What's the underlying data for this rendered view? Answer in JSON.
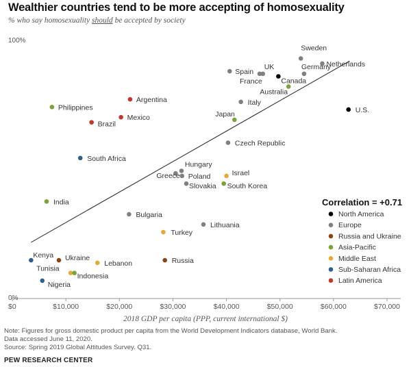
{
  "header": {
    "title": "Wealthier countries tend to be more accepting of homosexuality",
    "subtitle_pre": "% who say homosexuality ",
    "subtitle_em": "should",
    "subtitle_post": " be accepted by society"
  },
  "footer": {
    "note1": "Note: Figures for gross domestic product per capita from the World Development Indicators database, World Bank.",
    "note2": "Data accessed June 11, 2020.",
    "source": "Source: Spring 2019 Global Attitudes Survey. Q31.",
    "org": "PEW RESEARCH CENTER"
  },
  "chart_data": {
    "type": "scatter",
    "title": "Wealthier countries tend to be more accepting of homosexuality",
    "xlabel": "2018 GDP per capita (PPP, current international $)",
    "ylabel": "",
    "xlim": [
      0,
      70000
    ],
    "ylim": [
      0,
      100
    ],
    "x_ticks": [
      0,
      10000,
      20000,
      30000,
      40000,
      50000,
      60000,
      70000
    ],
    "x_tick_labels": [
      "$0",
      "$10,000",
      "$20,000",
      "$30,000",
      "$40,000",
      "$50,000",
      "$60,000",
      "$70,000"
    ],
    "y_ticks": [
      0,
      100
    ],
    "y_tick_labels": [
      "0%",
      "100%"
    ],
    "correlation_label": "Correlation = +0.71",
    "trendline": {
      "x": [
        3500,
        63000
      ],
      "y": [
        22,
        93
      ]
    },
    "legend_position": "right",
    "legend": [
      {
        "name": "North America",
        "color": "#000000"
      },
      {
        "name": "Europe",
        "color": "#808080"
      },
      {
        "name": "Russia and Ukraine",
        "color": "#8B4513"
      },
      {
        "name": "Asia-Pacific",
        "color": "#7BA33B"
      },
      {
        "name": "Middle East",
        "color": "#E5A93B"
      },
      {
        "name": "Sub-Saharan Africa",
        "color": "#2E5F8A"
      },
      {
        "name": "Latin America",
        "color": "#C0392B"
      }
    ],
    "points": [
      {
        "label": "Sweden",
        "x": 53900,
        "y": 94,
        "group": "Europe"
      },
      {
        "label": "Netherlands",
        "x": 57900,
        "y": 92,
        "group": "Europe"
      },
      {
        "label": "Spain",
        "x": 40600,
        "y": 89,
        "group": "Europe"
      },
      {
        "label": "UK",
        "x": 46800,
        "y": 88,
        "group": "Europe"
      },
      {
        "label": "France",
        "x": 46200,
        "y": 88,
        "group": "Europe"
      },
      {
        "label": "Germany",
        "x": 54500,
        "y": 88,
        "group": "Europe"
      },
      {
        "label": "Canada",
        "x": 49700,
        "y": 87,
        "group": "North America"
      },
      {
        "label": "Australia",
        "x": 51600,
        "y": 83,
        "group": "Asia-Pacific"
      },
      {
        "label": "Italy",
        "x": 42700,
        "y": 77,
        "group": "Europe"
      },
      {
        "label": "U.S.",
        "x": 62800,
        "y": 74,
        "group": "North America"
      },
      {
        "label": "Japan",
        "x": 41500,
        "y": 70,
        "group": "Asia-Pacific"
      },
      {
        "label": "Argentina",
        "x": 22000,
        "y": 78,
        "group": "Latin America"
      },
      {
        "label": "Philippines",
        "x": 7400,
        "y": 75,
        "group": "Asia-Pacific"
      },
      {
        "label": "Mexico",
        "x": 20300,
        "y": 71,
        "group": "Latin America"
      },
      {
        "label": "Brazil",
        "x": 14800,
        "y": 69,
        "group": "Latin America"
      },
      {
        "label": "Czech Republic",
        "x": 40300,
        "y": 61,
        "group": "Europe"
      },
      {
        "label": "South Africa",
        "x": 12700,
        "y": 55,
        "group": "Sub-Saharan Africa"
      },
      {
        "label": "Hungary",
        "x": 31600,
        "y": 50,
        "group": "Europe"
      },
      {
        "label": "Greece",
        "x": 30500,
        "y": 49,
        "group": "Europe"
      },
      {
        "label": "Poland",
        "x": 31700,
        "y": 48,
        "group": "Europe"
      },
      {
        "label": "Slovakia",
        "x": 32500,
        "y": 45,
        "group": "Europe"
      },
      {
        "label": "Israel",
        "x": 40000,
        "y": 48,
        "group": "Middle East"
      },
      {
        "label": "South Korea",
        "x": 39500,
        "y": 45,
        "group": "Asia-Pacific"
      },
      {
        "label": "India",
        "x": 6400,
        "y": 38,
        "group": "Asia-Pacific"
      },
      {
        "label": "Bulgaria",
        "x": 21800,
        "y": 33,
        "group": "Europe"
      },
      {
        "label": "Lithuania",
        "x": 35700,
        "y": 29,
        "group": "Europe"
      },
      {
        "label": "Turkey",
        "x": 28200,
        "y": 26,
        "group": "Middle East"
      },
      {
        "label": "Kenya",
        "x": 3500,
        "y": 15,
        "group": "Sub-Saharan Africa"
      },
      {
        "label": "Ukraine",
        "x": 8700,
        "y": 15,
        "group": "Russia and Ukraine"
      },
      {
        "label": "Lebanon",
        "x": 15900,
        "y": 14,
        "group": "Middle East"
      },
      {
        "label": "Russia",
        "x": 28500,
        "y": 15,
        "group": "Russia and Ukraine"
      },
      {
        "label": "Tunisia",
        "x": 10900,
        "y": 10,
        "group": "Middle East"
      },
      {
        "label": "Indonesia",
        "x": 11600,
        "y": 10,
        "group": "Asia-Pacific"
      },
      {
        "label": "Nigeria",
        "x": 5600,
        "y": 7,
        "group": "Sub-Saharan Africa"
      }
    ]
  }
}
